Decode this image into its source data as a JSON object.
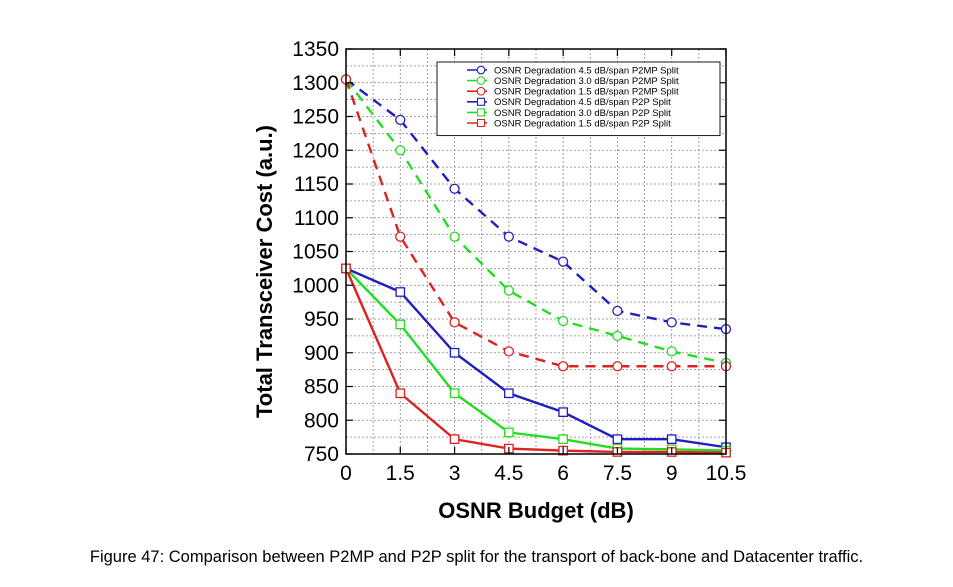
{
  "caption": "Figure 47: Comparison between P2MP and P2P split for the transport of back-bone and Datacenter traffic.",
  "chart_data": {
    "type": "line",
    "title": "",
    "xlabel": "OSNR Budget (dB)",
    "ylabel": "Total Transceiver Cost (a.u.)",
    "xlim": [
      0,
      10.5
    ],
    "ylim": [
      750,
      1350
    ],
    "xticks": [
      0,
      1.5,
      3,
      4.5,
      6,
      7.5,
      9,
      10.5
    ],
    "xtick_labels": [
      "0",
      "1.5",
      "3",
      "4.5",
      "6",
      "7.5",
      "9",
      "10.5"
    ],
    "yticks": [
      750,
      800,
      850,
      900,
      950,
      1000,
      1050,
      1100,
      1150,
      1200,
      1250,
      1300,
      1350
    ],
    "ytick_labels": [
      "750",
      "800",
      "850",
      "900",
      "950",
      "1000",
      "1050",
      "1100",
      "1150",
      "1200",
      "1250",
      "1300",
      "1350"
    ],
    "grid": true,
    "legend_position": "top-right",
    "x": [
      0,
      1.5,
      3,
      4.5,
      6,
      7.5,
      9,
      10.5
    ],
    "series": [
      {
        "name": "OSNR Degradation 4.5 dB/span P2MP Split",
        "color": "#1f1fbf",
        "marker": "circle",
        "dash": true,
        "values": [
          1305,
          1245,
          1143,
          1072,
          1035,
          962,
          945,
          935
        ]
      },
      {
        "name": "OSNR Degradation 3.0 dB/span P2MP Split",
        "color": "#22dd22",
        "marker": "circle",
        "dash": true,
        "values": [
          1305,
          1200,
          1072,
          992,
          947,
          925,
          902,
          885
        ]
      },
      {
        "name": "OSNR Degradation 1.5 dB/span P2MP Split",
        "color": "#dd2222",
        "marker": "circle",
        "dash": true,
        "values": [
          1305,
          1072,
          945,
          902,
          880,
          880,
          880,
          880
        ]
      },
      {
        "name": "OSNR Degradation 4.5 dB/span P2P Split",
        "color": "#1f1fbf",
        "marker": "square",
        "dash": false,
        "values": [
          1025,
          990,
          900,
          840,
          812,
          772,
          772,
          760
        ]
      },
      {
        "name": "OSNR Degradation 3.0 dB/span P2P Split",
        "color": "#22dd22",
        "marker": "square",
        "dash": false,
        "values": [
          1025,
          942,
          840,
          782,
          772,
          758,
          757,
          755
        ]
      },
      {
        "name": "OSNR Degradation 1.5 dB/span P2P Split",
        "color": "#dd2222",
        "marker": "square",
        "dash": false,
        "values": [
          1025,
          840,
          772,
          758,
          755,
          753,
          753,
          752
        ]
      }
    ]
  }
}
